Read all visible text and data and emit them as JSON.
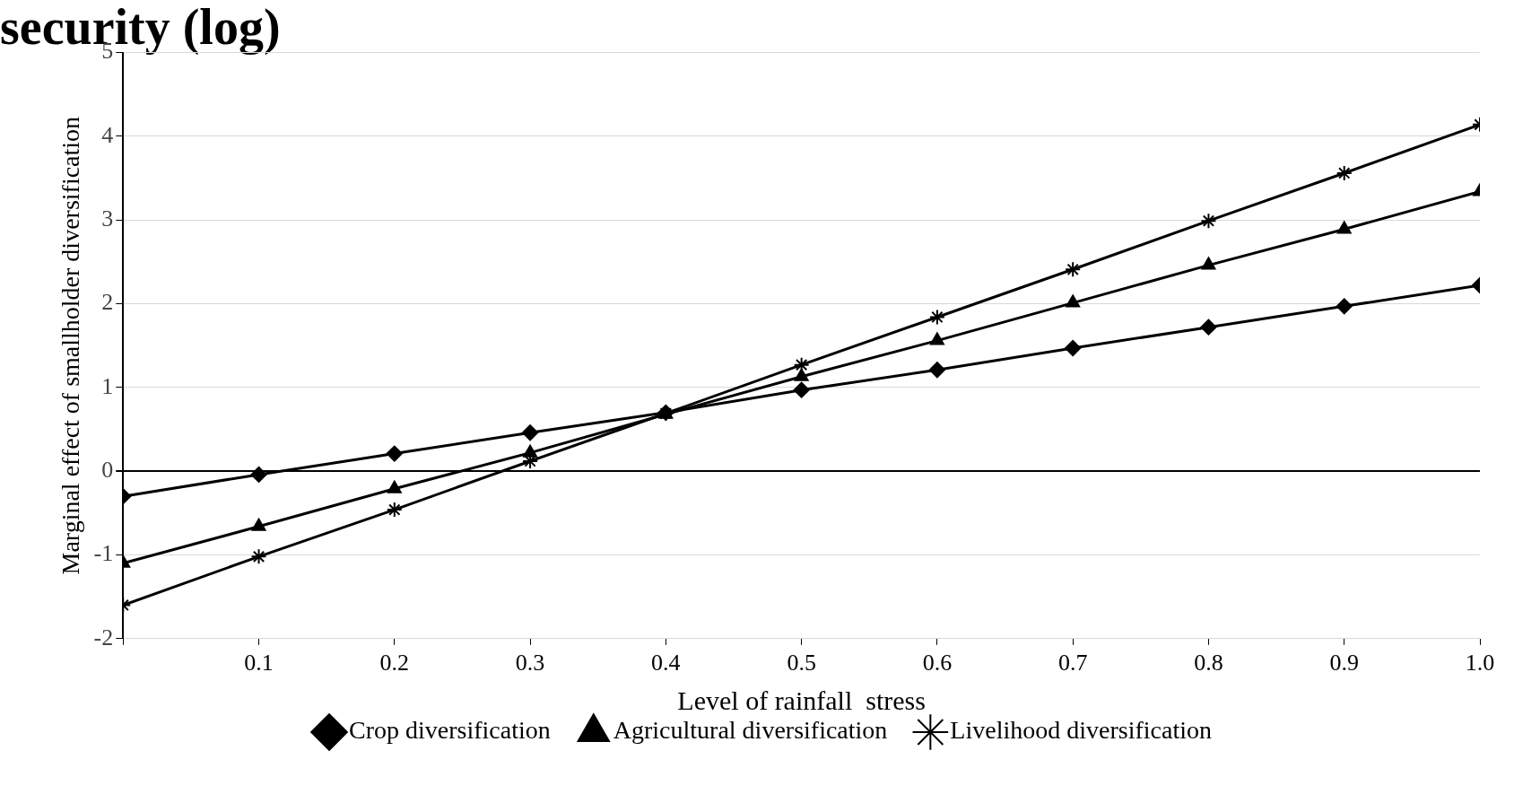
{
  "chart_data": {
    "type": "line",
    "title": "security (log)",
    "xlabel": "Level of rainfall  stress",
    "ylabel": "Marginal effect of smallholder diversification",
    "x": [
      0,
      0.1,
      0.2,
      0.3,
      0.4,
      0.5,
      0.6,
      0.7,
      0.8,
      0.9,
      1.0
    ],
    "series": [
      {
        "name": "Crop diversification",
        "color": "#000000",
        "marker": "diamond",
        "values": [
          -0.3,
          -0.04,
          0.21,
          0.46,
          0.7,
          0.97,
          1.21,
          1.47,
          1.72,
          1.97,
          2.22
        ]
      },
      {
        "name": "Agricultural diversification",
        "color": "#000000",
        "marker": "triangle",
        "values": [
          -1.1,
          -0.66,
          -0.21,
          0.22,
          0.68,
          1.13,
          1.56,
          2.01,
          2.46,
          2.89,
          3.34
        ]
      },
      {
        "name": "Livelihood diversification",
        "color": "#000000",
        "marker": "cross",
        "values": [
          -1.6,
          -1.02,
          -0.46,
          0.12,
          0.69,
          1.27,
          1.84,
          2.41,
          2.99,
          3.56,
          4.14
        ]
      }
    ],
    "xlim": [
      0,
      1
    ],
    "xticks": [
      {
        "value": 0,
        "label": null
      },
      0.1,
      0.2,
      0.3,
      0.4,
      0.5,
      0.6,
      0.7,
      0.8,
      0.9,
      {
        "value": 1,
        "label": "1.0"
      }
    ],
    "ylim": [
      -2,
      5
    ],
    "yticks": [
      -2,
      -1,
      0,
      1,
      2,
      3,
      4,
      5
    ],
    "grid": "y",
    "legend": "bottom",
    "line_style": "solid"
  }
}
